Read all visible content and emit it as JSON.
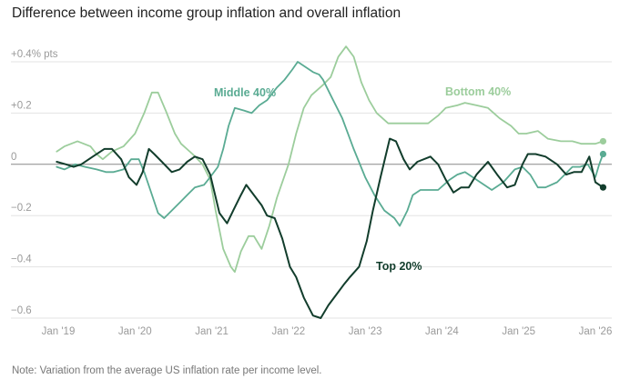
{
  "title": "Difference between income group inflation and overall inflation",
  "note": "Note: Variation from the average US inflation rate per income level.",
  "colors": {
    "bottom": "#9ccd9c",
    "middle": "#5aab93",
    "top": "#123d2c",
    "grid": "#e3e3e3",
    "zero": "#888888",
    "tick": "#9a9a9a"
  },
  "chart_data": {
    "type": "line",
    "title": "Difference between income group inflation and overall inflation",
    "xlabel": "",
    "ylabel": "",
    "x_range": [
      "2019-01",
      "2026-01"
    ],
    "ylim": [
      -0.6,
      0.4
    ],
    "y_ticks": [
      {
        "value": 0.4,
        "label": "+0.4% pts"
      },
      {
        "value": 0.2,
        "label": "+0.2"
      },
      {
        "value": 0,
        "label": "0"
      },
      {
        "value": -0.2,
        "label": "−0.2"
      },
      {
        "value": -0.4,
        "label": "−0.4"
      },
      {
        "value": -0.6,
        "label": "−0.6"
      }
    ],
    "x_ticks": [
      {
        "x": 2019,
        "label": "Jan '19"
      },
      {
        "x": 2020,
        "label": "Jan '20"
      },
      {
        "x": 2021,
        "label": "Jan '21"
      },
      {
        "x": 2022,
        "label": "Jan '22"
      },
      {
        "x": 2023,
        "label": "Jan '23"
      },
      {
        "x": 2024,
        "label": "Jan '24"
      },
      {
        "x": 2025,
        "label": "Jan '25"
      },
      {
        "x": 2026,
        "label": "Jan '26"
      }
    ],
    "grid": true,
    "legend": "inline labels",
    "series": [
      {
        "key": "bottom",
        "name": "Bottom 40%",
        "points": [
          [
            2018.98,
            0.05
          ],
          [
            2019.08,
            0.07
          ],
          [
            2019.25,
            0.09
          ],
          [
            2019.42,
            0.07
          ],
          [
            2019.5,
            0.04
          ],
          [
            2019.58,
            0.02
          ],
          [
            2019.7,
            0.05
          ],
          [
            2019.85,
            0.07
          ],
          [
            2020.0,
            0.12
          ],
          [
            2020.12,
            0.2
          ],
          [
            2020.22,
            0.28
          ],
          [
            2020.3,
            0.28
          ],
          [
            2020.4,
            0.21
          ],
          [
            2020.52,
            0.12
          ],
          [
            2020.6,
            0.08
          ],
          [
            2020.75,
            0.04
          ],
          [
            2020.88,
            0.0
          ],
          [
            2020.98,
            -0.06
          ],
          [
            2021.05,
            -0.18
          ],
          [
            2021.15,
            -0.33
          ],
          [
            2021.25,
            -0.4
          ],
          [
            2021.3,
            -0.42
          ],
          [
            2021.38,
            -0.34
          ],
          [
            2021.48,
            -0.28
          ],
          [
            2021.55,
            -0.28
          ],
          [
            2021.65,
            -0.33
          ],
          [
            2021.75,
            -0.24
          ],
          [
            2021.85,
            -0.13
          ],
          [
            2022.0,
            0.0
          ],
          [
            2022.1,
            0.12
          ],
          [
            2022.2,
            0.22
          ],
          [
            2022.3,
            0.27
          ],
          [
            2022.45,
            0.31
          ],
          [
            2022.55,
            0.34
          ],
          [
            2022.65,
            0.42
          ],
          [
            2022.75,
            0.46
          ],
          [
            2022.85,
            0.42
          ],
          [
            2022.95,
            0.32
          ],
          [
            2023.05,
            0.25
          ],
          [
            2023.15,
            0.2
          ],
          [
            2023.3,
            0.16
          ],
          [
            2023.5,
            0.16
          ],
          [
            2023.65,
            0.16
          ],
          [
            2023.82,
            0.16
          ],
          [
            2023.95,
            0.19
          ],
          [
            2024.05,
            0.22
          ],
          [
            2024.2,
            0.23
          ],
          [
            2024.3,
            0.24
          ],
          [
            2024.45,
            0.23
          ],
          [
            2024.6,
            0.22
          ],
          [
            2024.75,
            0.18
          ],
          [
            2024.9,
            0.15
          ],
          [
            2025.0,
            0.12
          ],
          [
            2025.1,
            0.12
          ],
          [
            2025.25,
            0.13
          ],
          [
            2025.38,
            0.1
          ],
          [
            2025.55,
            0.09
          ],
          [
            2025.7,
            0.09
          ],
          [
            2025.82,
            0.08
          ],
          [
            2026.0,
            0.08
          ],
          [
            2026.1,
            0.09
          ]
        ]
      },
      {
        "key": "middle",
        "name": "Middle 40%",
        "points": [
          [
            2018.98,
            -0.01
          ],
          [
            2019.08,
            -0.02
          ],
          [
            2019.22,
            0.0
          ],
          [
            2019.35,
            -0.01
          ],
          [
            2019.5,
            -0.02
          ],
          [
            2019.62,
            -0.03
          ],
          [
            2019.72,
            -0.03
          ],
          [
            2019.85,
            -0.02
          ],
          [
            2019.95,
            0.02
          ],
          [
            2020.05,
            0.02
          ],
          [
            2020.12,
            -0.03
          ],
          [
            2020.2,
            -0.1
          ],
          [
            2020.3,
            -0.19
          ],
          [
            2020.38,
            -0.21
          ],
          [
            2020.48,
            -0.18
          ],
          [
            2020.58,
            -0.15
          ],
          [
            2020.68,
            -0.12
          ],
          [
            2020.78,
            -0.09
          ],
          [
            2020.9,
            -0.08
          ],
          [
            2020.98,
            -0.05
          ],
          [
            2021.08,
            -0.01
          ],
          [
            2021.15,
            0.06
          ],
          [
            2021.22,
            0.15
          ],
          [
            2021.3,
            0.22
          ],
          [
            2021.42,
            0.21
          ],
          [
            2021.52,
            0.2
          ],
          [
            2021.62,
            0.23
          ],
          [
            2021.72,
            0.25
          ],
          [
            2021.85,
            0.3
          ],
          [
            2021.95,
            0.33
          ],
          [
            2022.05,
            0.37
          ],
          [
            2022.12,
            0.4
          ],
          [
            2022.22,
            0.38
          ],
          [
            2022.32,
            0.36
          ],
          [
            2022.4,
            0.35
          ],
          [
            2022.45,
            0.33
          ],
          [
            2022.55,
            0.27
          ],
          [
            2022.7,
            0.18
          ],
          [
            2022.85,
            0.06
          ],
          [
            2023.0,
            -0.05
          ],
          [
            2023.12,
            -0.12
          ],
          [
            2023.25,
            -0.18
          ],
          [
            2023.38,
            -0.21
          ],
          [
            2023.45,
            -0.24
          ],
          [
            2023.55,
            -0.18
          ],
          [
            2023.62,
            -0.12
          ],
          [
            2023.72,
            -0.1
          ],
          [
            2023.85,
            -0.1
          ],
          [
            2023.95,
            -0.1
          ],
          [
            2024.1,
            -0.06
          ],
          [
            2024.2,
            -0.04
          ],
          [
            2024.3,
            -0.03
          ],
          [
            2024.45,
            -0.06
          ],
          [
            2024.55,
            -0.08
          ],
          [
            2024.65,
            -0.1
          ],
          [
            2024.8,
            -0.07
          ],
          [
            2024.95,
            -0.02
          ],
          [
            2025.05,
            -0.01
          ],
          [
            2025.15,
            -0.04
          ],
          [
            2025.25,
            -0.09
          ],
          [
            2025.35,
            -0.09
          ],
          [
            2025.5,
            -0.07
          ],
          [
            2025.6,
            -0.04
          ],
          [
            2025.7,
            -0.01
          ],
          [
            2025.8,
            -0.01
          ],
          [
            2025.9,
            0.0
          ],
          [
            2026.0,
            -0.05
          ],
          [
            2026.05,
            0.0
          ],
          [
            2026.1,
            0.04
          ]
        ]
      },
      {
        "key": "top",
        "name": "Top 20%",
        "points": [
          [
            2018.98,
            0.01
          ],
          [
            2019.1,
            0.0
          ],
          [
            2019.2,
            -0.01
          ],
          [
            2019.3,
            0.0
          ],
          [
            2019.45,
            0.03
          ],
          [
            2019.6,
            0.06
          ],
          [
            2019.7,
            0.06
          ],
          [
            2019.82,
            0.02
          ],
          [
            2019.92,
            -0.05
          ],
          [
            2020.02,
            -0.08
          ],
          [
            2020.1,
            -0.03
          ],
          [
            2020.18,
            0.06
          ],
          [
            2020.25,
            0.04
          ],
          [
            2020.35,
            0.01
          ],
          [
            2020.48,
            -0.03
          ],
          [
            2020.58,
            -0.02
          ],
          [
            2020.68,
            0.01
          ],
          [
            2020.78,
            0.03
          ],
          [
            2020.88,
            0.02
          ],
          [
            2020.98,
            -0.04
          ],
          [
            2021.1,
            -0.19
          ],
          [
            2021.2,
            -0.23
          ],
          [
            2021.28,
            -0.18
          ],
          [
            2021.38,
            -0.12
          ],
          [
            2021.45,
            -0.08
          ],
          [
            2021.55,
            -0.12
          ],
          [
            2021.65,
            -0.16
          ],
          [
            2021.72,
            -0.2
          ],
          [
            2021.82,
            -0.21
          ],
          [
            2021.92,
            -0.29
          ],
          [
            2022.02,
            -0.4
          ],
          [
            2022.1,
            -0.44
          ],
          [
            2022.2,
            -0.52
          ],
          [
            2022.32,
            -0.59
          ],
          [
            2022.42,
            -0.6
          ],
          [
            2022.52,
            -0.55
          ],
          [
            2022.62,
            -0.51
          ],
          [
            2022.72,
            -0.47
          ],
          [
            2022.8,
            -0.44
          ],
          [
            2022.92,
            -0.4
          ],
          [
            2023.02,
            -0.3
          ],
          [
            2023.1,
            -0.18
          ],
          [
            2023.2,
            -0.05
          ],
          [
            2023.32,
            0.1
          ],
          [
            2023.4,
            0.09
          ],
          [
            2023.5,
            0.02
          ],
          [
            2023.58,
            -0.02
          ],
          [
            2023.68,
            0.01
          ],
          [
            2023.85,
            0.03
          ],
          [
            2023.95,
            0.0
          ],
          [
            2024.05,
            -0.06
          ],
          [
            2024.15,
            -0.11
          ],
          [
            2024.25,
            -0.09
          ],
          [
            2024.35,
            -0.09
          ],
          [
            2024.45,
            -0.04
          ],
          [
            2024.6,
            0.01
          ],
          [
            2024.72,
            -0.04
          ],
          [
            2024.85,
            -0.09
          ],
          [
            2024.95,
            -0.08
          ],
          [
            2025.05,
            0.0
          ],
          [
            2025.12,
            0.04
          ],
          [
            2025.22,
            0.04
          ],
          [
            2025.35,
            0.03
          ],
          [
            2025.5,
            0.0
          ],
          [
            2025.62,
            -0.04
          ],
          [
            2025.72,
            -0.03
          ],
          [
            2025.82,
            -0.03
          ],
          [
            2025.92,
            0.03
          ],
          [
            2026.0,
            -0.07
          ],
          [
            2026.1,
            -0.09
          ]
        ]
      }
    ]
  },
  "labels": {
    "bottom": {
      "text": "Bottom 40%"
    },
    "middle": {
      "text": "Middle 40%"
    },
    "top": {
      "text": "Top 20%"
    }
  }
}
